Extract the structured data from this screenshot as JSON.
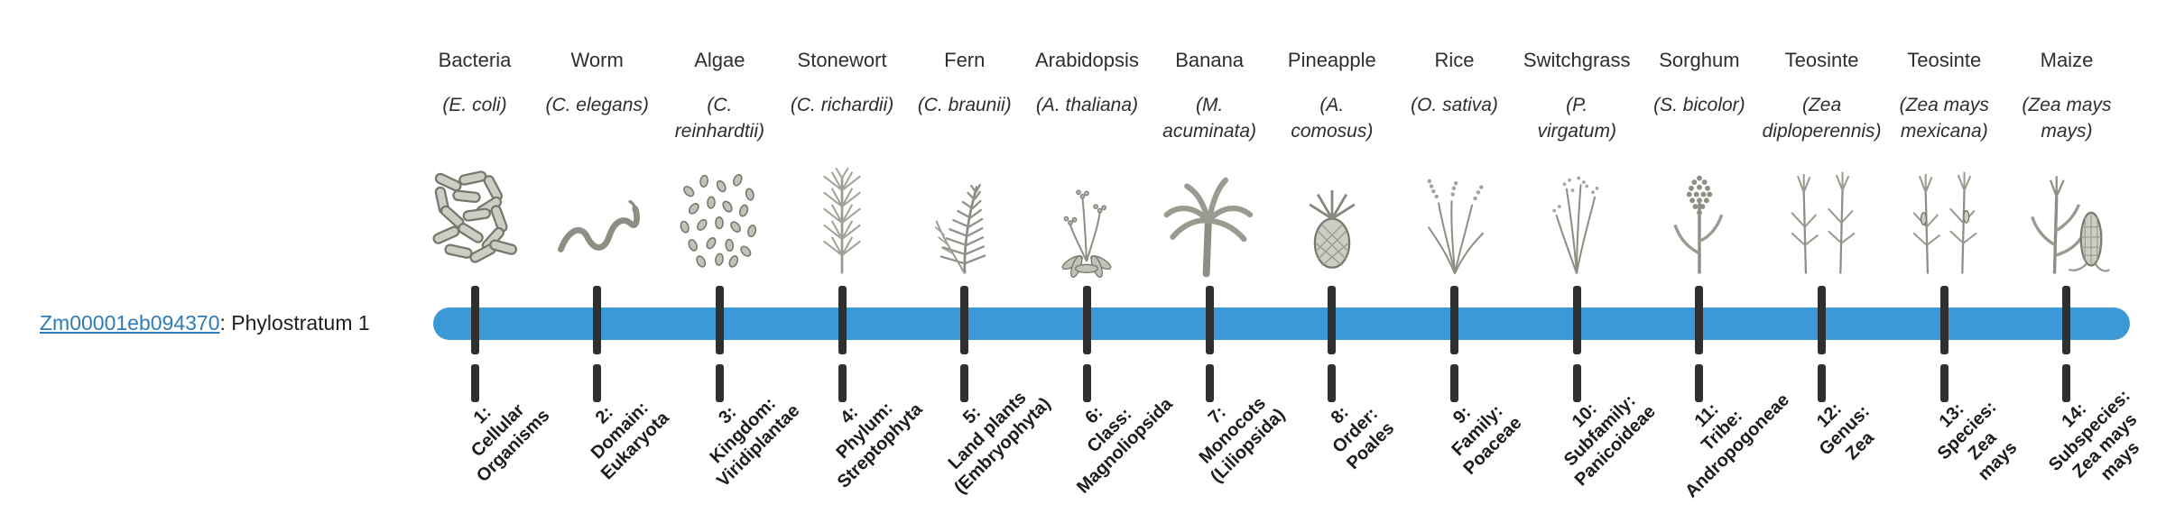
{
  "gene": {
    "id": "Zm00001eb094370",
    "suffix": ": Phylostratum 1"
  },
  "timeline": {
    "bar_color": "#3b99d8",
    "tick_color": "#2f2f2f"
  },
  "link_color": "#2e7cb8",
  "organisms": [
    {
      "name": "Bacteria",
      "sci": "(E. coli)",
      "icon": "bacteria-icon",
      "stratum": "1:\nCellular\nOrganisms"
    },
    {
      "name": "Worm",
      "sci": "(C. elegans)",
      "icon": "worm-icon",
      "stratum": "2:\nDomain:\nEukaryota"
    },
    {
      "name": "Algae",
      "sci": "(C.\nreinhardtii)",
      "icon": "algae-icon",
      "stratum": "3:\nKingdom:\nViridiplantae"
    },
    {
      "name": "Stonewort",
      "sci": "(C. richardii)",
      "icon": "stonewort-icon",
      "stratum": "4:\nPhylum:\nStreptophyta"
    },
    {
      "name": "Fern",
      "sci": "(C. braunii)",
      "icon": "fern-icon",
      "stratum": "5:\nLand plants\n(Embryophyta)"
    },
    {
      "name": "Arabidopsis",
      "sci": "(A. thaliana)",
      "icon": "arabidopsis-icon",
      "stratum": "6:\nClass:\nMagnoliopsida"
    },
    {
      "name": "Banana",
      "sci": "(M.\nacuminata)",
      "icon": "banana-icon",
      "stratum": "7:\nMonocots\n(Liliopsida)"
    },
    {
      "name": "Pineapple",
      "sci": "(A.\ncomosus)",
      "icon": "pineapple-icon",
      "stratum": "8:\nOrder:\nPoales"
    },
    {
      "name": "Rice",
      "sci": "(O. sativa)",
      "icon": "rice-icon",
      "stratum": "9:\nFamily:\nPoaceae"
    },
    {
      "name": "Switchgrass",
      "sci": "(P.\nvirgatum)",
      "icon": "switchgrass-icon",
      "stratum": "10:\nSubfamily:\nPanicoideae"
    },
    {
      "name": "Sorghum",
      "sci": "(S. bicolor)",
      "icon": "sorghum-icon",
      "stratum": "11:\nTribe:\nAndropogoneae"
    },
    {
      "name": "Teosinte",
      "sci": "(Zea\ndiploperennis)",
      "icon": "teosinte-diploperennis-icon",
      "stratum": "12:\nGenus:\nZea"
    },
    {
      "name": "Teosinte",
      "sci": "(Zea mays\nmexicana)",
      "icon": "teosinte-mexicana-icon",
      "stratum": "13:\nSpecies:\nZea\nmays"
    },
    {
      "name": "Maize",
      "sci": "(Zea mays\nmays)",
      "icon": "maize-icon",
      "stratum": "14:\nSubspecies:\nZea mays\nmays"
    }
  ]
}
